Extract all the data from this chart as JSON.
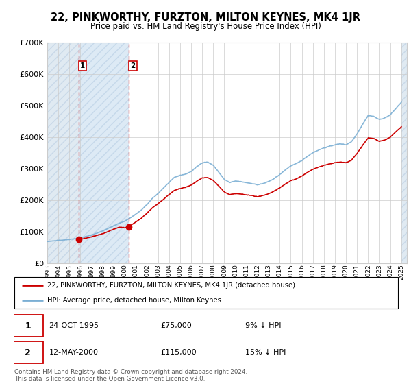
{
  "title": "22, PINKWORTHY, FURZTON, MILTON KEYNES, MK4 1JR",
  "subtitle": "Price paid vs. HM Land Registry's House Price Index (HPI)",
  "ylim": [
    0,
    700000
  ],
  "yticks": [
    0,
    100000,
    200000,
    300000,
    400000,
    500000,
    600000,
    700000
  ],
  "ytick_labels": [
    "£0",
    "£100K",
    "£200K",
    "£300K",
    "£400K",
    "£500K",
    "£600K",
    "£700K"
  ],
  "sale1_t": 1995.82,
  "sale1_p": 75000,
  "sale2_t": 2000.36,
  "sale2_p": 115000,
  "legend1": "22, PINKWORTHY, FURZTON, MILTON KEYNES, MK4 1JR (detached house)",
  "legend2": "HPI: Average price, detached house, Milton Keynes",
  "table_row1": [
    "1",
    "24-OCT-1995",
    "£75,000",
    "9% ↓ HPI"
  ],
  "table_row2": [
    "2",
    "12-MAY-2000",
    "£115,000",
    "15% ↓ HPI"
  ],
  "footer": "Contains HM Land Registry data © Crown copyright and database right 2024.\nThis data is licensed under the Open Government Licence v3.0.",
  "hpi_color": "#7bafd4",
  "price_color": "#cc0000",
  "hatch_bg": "#e0eaf2",
  "hatch_edge": "#c8d8e8",
  "xmin": 1993,
  "xmax": 2025.5,
  "known_years_hpi": [
    1993.0,
    1993.5,
    1994.0,
    1994.5,
    1995.0,
    1995.5,
    1996.0,
    1996.5,
    1997.0,
    1997.5,
    1998.0,
    1998.5,
    1999.0,
    1999.5,
    2000.0,
    2000.5,
    2001.0,
    2001.5,
    2002.0,
    2002.5,
    2003.0,
    2003.5,
    2004.0,
    2004.5,
    2005.0,
    2005.5,
    2006.0,
    2006.5,
    2007.0,
    2007.5,
    2008.0,
    2008.5,
    2009.0,
    2009.5,
    2010.0,
    2010.5,
    2011.0,
    2011.5,
    2012.0,
    2012.5,
    2013.0,
    2013.5,
    2014.0,
    2014.5,
    2015.0,
    2015.5,
    2016.0,
    2016.5,
    2017.0,
    2017.5,
    2018.0,
    2018.5,
    2019.0,
    2019.5,
    2020.0,
    2020.5,
    2021.0,
    2021.5,
    2022.0,
    2022.5,
    2023.0,
    2023.5,
    2024.0,
    2024.5,
    2025.0
  ],
  "known_vals_hpi": [
    68000,
    70000,
    72000,
    73000,
    75000,
    77000,
    80000,
    84000,
    89000,
    95000,
    102000,
    110000,
    118000,
    126000,
    133000,
    143000,
    155000,
    168000,
    185000,
    205000,
    220000,
    238000,
    255000,
    272000,
    278000,
    282000,
    290000,
    305000,
    318000,
    320000,
    310000,
    288000,
    265000,
    255000,
    260000,
    258000,
    255000,
    252000,
    248000,
    252000,
    258000,
    268000,
    280000,
    295000,
    308000,
    315000,
    325000,
    338000,
    350000,
    358000,
    365000,
    370000,
    375000,
    378000,
    375000,
    385000,
    410000,
    440000,
    468000,
    465000,
    455000,
    460000,
    470000,
    490000,
    510000
  ],
  "known_years_price": [
    1995.82,
    1996.0,
    1996.5,
    1997.0,
    1997.5,
    1998.0,
    1998.5,
    1999.0,
    1999.5,
    2000.0,
    2000.36,
    2000.5,
    2001.0,
    2001.5,
    2002.0,
    2002.5,
    2003.0,
    2003.5,
    2004.0,
    2004.5,
    2005.0,
    2005.5,
    2006.0,
    2006.5,
    2007.0,
    2007.5,
    2008.0,
    2008.5,
    2009.0,
    2009.5,
    2010.0,
    2010.5,
    2011.0,
    2011.5,
    2012.0,
    2012.5,
    2013.0,
    2013.5,
    2014.0,
    2014.5,
    2015.0,
    2015.5,
    2016.0,
    2016.5,
    2017.0,
    2017.5,
    2018.0,
    2018.5,
    2019.0,
    2019.5,
    2020.0,
    2020.5,
    2021.0,
    2021.5,
    2022.0,
    2022.5,
    2023.0,
    2023.5,
    2024.0,
    2024.5,
    2025.0
  ],
  "known_vals_price": [
    75000,
    76000,
    79000,
    83000,
    88000,
    93000,
    100000,
    107000,
    114000,
    112000,
    115000,
    119000,
    130000,
    142000,
    158000,
    175000,
    188000,
    202000,
    217000,
    231000,
    236000,
    240000,
    247000,
    259000,
    270000,
    271000,
    262000,
    244000,
    225000,
    217000,
    220000,
    219000,
    216000,
    214000,
    210000,
    214000,
    219000,
    228000,
    238000,
    250000,
    261000,
    267000,
    276000,
    287000,
    297000,
    304000,
    310000,
    314000,
    318000,
    320000,
    318000,
    326000,
    348000,
    373000,
    397000,
    395000,
    386000,
    390000,
    399000,
    416000,
    432000
  ]
}
